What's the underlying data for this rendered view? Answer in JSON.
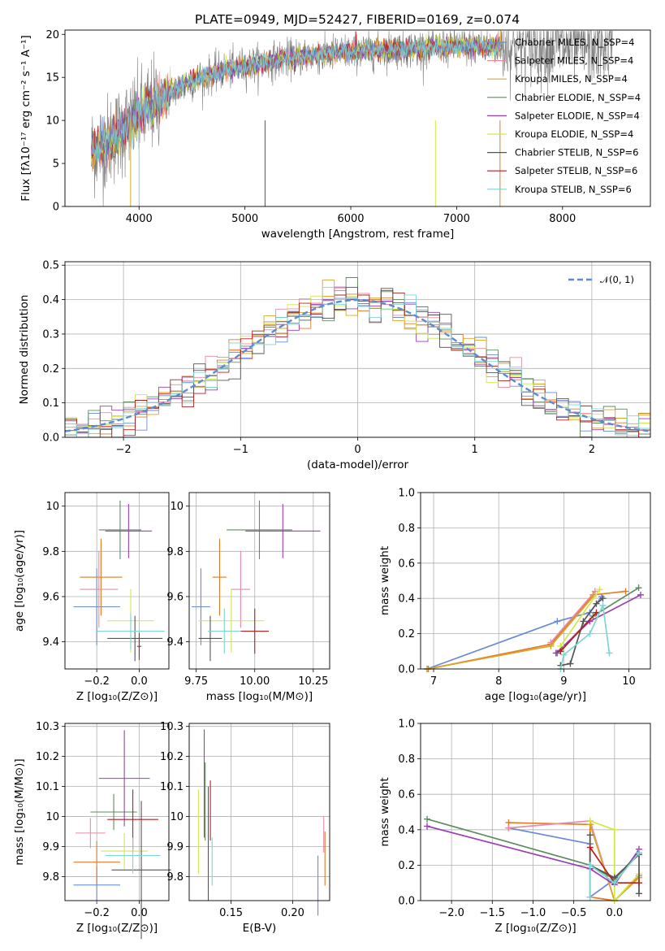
{
  "title": "PLATE=0949, MJD=52427, FIBERID=0169, z=0.074",
  "series_colors": [
    "#6a8ad8",
    "#e07b28",
    "#e88aa8",
    "#d9a52b",
    "#5e8c5e",
    "#9b3fb4",
    "#d2e64a",
    "#555555",
    "#b22020",
    "#7fd4d4"
  ],
  "chart_data": [
    {
      "id": "spectrum",
      "type": "line",
      "xlabel": "wavelength [Angstrom, rest frame]",
      "ylabel": "Flux [fλ10⁻¹⁷ erg cm⁻² s⁻¹ A⁻¹]",
      "xlim": [
        3300,
        8830
      ],
      "ylim": [
        0,
        20.5
      ],
      "xticks": [
        4000,
        5000,
        6000,
        7000,
        8000
      ],
      "yticks": [
        0,
        5,
        10,
        15,
        20
      ],
      "grid": false,
      "legend_position": "top-right",
      "legend": [
        {
          "name": "Chabrier MILES, N_SSP=4",
          "color": "#6a8ad8"
        },
        {
          "name": "Salpeter MILES, N_SSP=4",
          "color": "#e88aa8"
        },
        {
          "name": "Kroupa MILES, N_SSP=4",
          "color": "#d9a52b"
        },
        {
          "name": "Chabrier ELODIE, N_SSP=4",
          "color": "#5e8c5e"
        },
        {
          "name": "Salpeter ELODIE, N_SSP=4",
          "color": "#9b3fb4"
        },
        {
          "name": "Kroupa ELODIE, N_SSP=4",
          "color": "#d2e64a"
        },
        {
          "name": "Chabrier STELIB, N_SSP=6",
          "color": "#555555"
        },
        {
          "name": "Salpeter STELIB, N_SSP=6",
          "color": "#b22020"
        },
        {
          "name": "Kroupa STELIB, N_SSP=6",
          "color": "#7fd4d4"
        }
      ],
      "observed_color": "#808080",
      "continuum": {
        "x": [
          3550,
          3700,
          3800,
          3900,
          4000,
          4100,
          4200,
          4400,
          4600,
          4800,
          5000,
          5300,
          5600,
          6000,
          6400,
          6800,
          7200,
          7400
        ],
        "y": [
          6.5,
          7.5,
          8.5,
          9.5,
          10.5,
          11.5,
          12.5,
          14.0,
          15.0,
          15.8,
          16.3,
          17.0,
          17.5,
          18.0,
          18.3,
          18.5,
          18.6,
          18.6
        ]
      },
      "observed_xrange": [
        3550,
        8470
      ],
      "model_xrange": [
        3550,
        7420
      ]
    },
    {
      "id": "residuals",
      "type": "histogram",
      "xlabel": "(data-model)/error",
      "ylabel": "Normed distribution",
      "xlim": [
        -2.5,
        2.5
      ],
      "ylim": [
        0,
        0.51
      ],
      "xticks": [
        -2,
        -1,
        0,
        1,
        2
      ],
      "yticks": [
        0.0,
        0.1,
        0.2,
        0.3,
        0.4,
        0.5
      ],
      "grid": true,
      "bin_width": 0.1,
      "legend_position": "top-right",
      "legend": [
        {
          "name": "𝒩(0, 1)",
          "color": "#5b8bd0"
        }
      ],
      "reference_curve": {
        "name": "𝒩(0, 1)",
        "mean": 0,
        "sigma": 1,
        "style": "dashed"
      }
    },
    {
      "id": "age-vs-Z",
      "type": "errorbar",
      "xlabel": "Z [log₁₀(Z/Z⊙)]",
      "ylabel": "age  [log₁₀(age/yr)]",
      "xlim": [
        -0.35,
        0.14
      ],
      "ylim": [
        9.28,
        10.06
      ],
      "xticks": [
        -0.2,
        0.0
      ],
      "xtick_labels": [
        "−0.2",
        "0.0"
      ],
      "yticks": [
        9.4,
        9.6,
        9.8,
        10.0
      ],
      "grid": true,
      "points": [
        {
          "x": -0.2,
          "xerr": 0.11,
          "y": 9.555,
          "yerr": 0.17,
          "color": "#6a8ad8"
        },
        {
          "x": -0.18,
          "xerr": 0.1,
          "y": 9.686,
          "yerr": 0.17,
          "color": "#e07b28"
        },
        {
          "x": -0.19,
          "xerr": 0.09,
          "y": 9.632,
          "yerr": 0.17,
          "color": "#e88aa8"
        },
        {
          "x": -0.09,
          "xerr": 0.1,
          "y": 9.895,
          "yerr": 0.13,
          "color": "#5e8c5e"
        },
        {
          "x": -0.05,
          "xerr": 0.11,
          "y": 9.89,
          "yerr": 0.12,
          "color": "#9b3fb4"
        },
        {
          "x": -0.04,
          "xerr": 0.11,
          "y": 9.493,
          "yerr": 0.14,
          "color": "#d2e64a"
        },
        {
          "x": -0.02,
          "xerr": 0.13,
          "y": 9.415,
          "yerr": 0.1,
          "color": "#555555"
        },
        {
          "x": 0.0,
          "xerr": 0.01,
          "y": 9.38,
          "yerr": 0.06,
          "color": "#b22020"
        },
        {
          "x": -0.04,
          "xerr": 0.16,
          "y": 9.447,
          "yerr": 0.08,
          "color": "#7fd4d4"
        }
      ]
    },
    {
      "id": "age-vs-mass",
      "type": "errorbar",
      "xlabel": "mass [log₁₀(M/M⊙)]",
      "ylabel": "",
      "xlim": [
        9.72,
        10.32
      ],
      "ylim": [
        9.28,
        10.06
      ],
      "xticks": [
        9.75,
        10.0,
        10.25
      ],
      "xtick_labels": [
        "9.75",
        "10.00",
        "10.25"
      ],
      "yticks": [
        9.4,
        9.6,
        9.8,
        10.0
      ],
      "grid": true,
      "points": [
        {
          "x": 9.77,
          "xerr": 0.04,
          "y": 9.555,
          "yerr": 0.17,
          "color": "#6a8ad8"
        },
        {
          "x": 9.85,
          "xerr": 0.03,
          "y": 9.686,
          "yerr": 0.17,
          "color": "#e07b28"
        },
        {
          "x": 9.94,
          "xerr": 0.04,
          "y": 9.632,
          "yerr": 0.17,
          "color": "#e88aa8"
        },
        {
          "x": 10.02,
          "xerr": 0.14,
          "y": 9.895,
          "yerr": 0.13,
          "color": "#5e8c5e"
        },
        {
          "x": 10.12,
          "xerr": 0.16,
          "y": 9.89,
          "yerr": 0.12,
          "color": "#9b3fb4"
        },
        {
          "x": 9.9,
          "xerr": 0.14,
          "y": 9.493,
          "yerr": 0.14,
          "color": "#d2e64a"
        },
        {
          "x": 9.81,
          "xerr": 0.05,
          "y": 9.415,
          "yerr": 0.1,
          "color": "#555555"
        },
        {
          "x": 10.0,
          "xerr": 0.06,
          "y": 9.447,
          "yerr": 0.1,
          "color": "#b22020"
        },
        {
          "x": 9.87,
          "xerr": 0.07,
          "y": 9.447,
          "yerr": 0.1,
          "color": "#7fd4d4"
        }
      ]
    },
    {
      "id": "weight-vs-age",
      "type": "line",
      "xlabel": "age  [log₁₀(age/yr)]",
      "ylabel": "mass weight",
      "xlim": [
        6.8,
        10.33
      ],
      "ylim": [
        0,
        1.0
      ],
      "xticks": [
        7,
        8,
        9,
        10
      ],
      "yticks": [
        0.0,
        0.2,
        0.4,
        0.6,
        0.8,
        1.0
      ],
      "grid": true,
      "series": [
        {
          "color": "#6a8ad8",
          "x": [
            6.9,
            8.9,
            9.4,
            9.58
          ],
          "y": [
            0.0,
            0.27,
            0.32,
            0.41
          ]
        },
        {
          "color": "#e07b28",
          "x": [
            6.92,
            8.8,
            9.45,
            9.95
          ],
          "y": [
            0.0,
            0.14,
            0.42,
            0.44
          ]
        },
        {
          "color": "#e88aa8",
          "x": [
            8.8,
            9.48
          ],
          "y": [
            0.15,
            0.44
          ]
        },
        {
          "color": "#d9a52b",
          "x": [
            6.9,
            8.8,
            9.45
          ],
          "y": [
            0.0,
            0.13,
            0.41
          ]
        },
        {
          "color": "#5e8c5e",
          "x": [
            8.9,
            9.45,
            10.15
          ],
          "y": [
            0.09,
            0.3,
            0.46
          ]
        },
        {
          "color": "#9b3fb4",
          "x": [
            8.88,
            9.4,
            10.18
          ],
          "y": [
            0.09,
            0.27,
            0.42
          ]
        },
        {
          "color": "#d2e64a",
          "x": [
            8.95,
            9.55
          ],
          "y": [
            0.13,
            0.45
          ]
        },
        {
          "color": "#555555",
          "x": [
            8.95,
            9.1,
            9.3,
            9.5,
            9.6
          ],
          "y": [
            0.02,
            0.03,
            0.27,
            0.37,
            0.4
          ]
        },
        {
          "color": "#b22020",
          "x": [
            8.95,
            9.5
          ],
          "y": [
            0.1,
            0.32
          ]
        },
        {
          "color": "#7fd4d4",
          "x": [
            8.95,
            9.0,
            9.4,
            9.6,
            9.7
          ],
          "y": [
            0.0,
            0.08,
            0.2,
            0.36,
            0.09
          ]
        }
      ]
    },
    {
      "id": "mass-vs-Z",
      "type": "errorbar",
      "xlabel": "Z [log₁₀(Z/Z⊙)]",
      "ylabel": "mass [log₁₀(M/M⊙)]",
      "xlim": [
        -0.35,
        0.14
      ],
      "ylim": [
        9.72,
        10.31
      ],
      "xticks": [
        -0.2,
        0.0
      ],
      "xtick_labels": [
        "−0.2",
        "0.0"
      ],
      "yticks": [
        9.8,
        9.9,
        10.0,
        10.1,
        10.2,
        10.3
      ],
      "grid": true,
      "points": [
        {
          "x": -0.2,
          "xerr": 0.11,
          "y": 9.772,
          "yerr": 0.06,
          "color": "#6a8ad8"
        },
        {
          "x": -0.2,
          "xerr": 0.11,
          "y": 9.848,
          "yerr": 0.07,
          "color": "#e07b28"
        },
        {
          "x": -0.23,
          "xerr": 0.07,
          "y": 9.945,
          "yerr": 0.05,
          "color": "#e88aa8"
        },
        {
          "x": -0.12,
          "xerr": 0.11,
          "y": 10.015,
          "yerr": 0.06,
          "color": "#5e8c5e"
        },
        {
          "x": -0.07,
          "xerr": 0.12,
          "y": 10.127,
          "yerr": 0.16,
          "color": "#9b3fb4"
        },
        {
          "x": -0.07,
          "xerr": 0.11,
          "y": 9.885,
          "yerr": 0.06,
          "color": "#d2e64a"
        },
        {
          "x": 0.01,
          "xerr": 0.14,
          "y": 9.822,
          "yerr": 0.23,
          "color": "#555555"
        },
        {
          "x": -0.03,
          "xerr": 0.12,
          "y": 9.99,
          "yerr": 0.1,
          "color": "#b22020"
        },
        {
          "x": -0.03,
          "xerr": 0.13,
          "y": 9.87,
          "yerr": 0.06,
          "color": "#7fd4d4"
        }
      ]
    },
    {
      "id": "mass-vs-EBV",
      "type": "errorbar",
      "xlabel": "E(B-V)",
      "ylabel": "",
      "xlim": [
        0.116,
        0.23
      ],
      "ylim": [
        9.72,
        10.31
      ],
      "xticks": [
        0.15,
        0.2
      ],
      "xtick_labels": [
        "0.15",
        "0.20"
      ],
      "yticks": [
        9.8,
        9.9,
        10.0,
        10.1,
        10.2,
        10.3
      ],
      "grid": true,
      "points": [
        {
          "x": 0.2205,
          "xerr": 0.0,
          "y": 9.77,
          "yerr": 0.1,
          "color": "#6a8ad8"
        },
        {
          "x": 0.2262,
          "xerr": 0.0,
          "y": 9.86,
          "yerr": 0.09,
          "color": "#e07b28"
        },
        {
          "x": 0.2252,
          "xerr": 0.0,
          "y": 9.94,
          "yerr": 0.06,
          "color": "#e88aa8"
        },
        {
          "x": 0.129,
          "xerr": 0.0,
          "y": 10.05,
          "yerr": 0.13,
          "color": "#5e8c5e"
        },
        {
          "x": 0.1282,
          "xerr": 0.0,
          "y": 10.11,
          "yerr": 0.18,
          "color": "#9b3fb4"
        },
        {
          "x": 0.1235,
          "xerr": 0.0,
          "y": 9.95,
          "yerr": 0.14,
          "color": "#d2e64a"
        },
        {
          "x": 0.1315,
          "xerr": 0.0,
          "y": 9.91,
          "yerr": 0.19,
          "color": "#555555"
        },
        {
          "x": 0.1332,
          "xerr": 0.0,
          "y": 10.02,
          "yerr": 0.1,
          "color": "#b22020"
        },
        {
          "x": 0.1346,
          "xerr": 0.0,
          "y": 9.85,
          "yerr": 0.08,
          "color": "#7fd4d4"
        }
      ]
    },
    {
      "id": "weight-vs-Z",
      "type": "line",
      "xlabel": "Z [log₁₀(Z/Z⊙)]",
      "ylabel": "mass weight",
      "xlim": [
        -2.38,
        0.44
      ],
      "ylim": [
        0,
        1.0
      ],
      "xticks": [
        -2.0,
        -1.5,
        -1.0,
        -0.5,
        0.0
      ],
      "xtick_labels": [
        "−2.0",
        "−1.5",
        "−1.0",
        "−0.5",
        "0.0"
      ],
      "yticks": [
        0.0,
        0.2,
        0.4,
        0.6,
        0.8,
        1.0
      ],
      "grid": true,
      "series": [
        {
          "color": "#6a8ad8",
          "x": [
            -1.3,
            -0.3,
            -0.3,
            0.0,
            0.3
          ],
          "y": [
            0.41,
            0.32,
            0.02,
            0.12,
            0.27
          ]
        },
        {
          "color": "#e07b28",
          "x": [
            -1.3,
            -0.3,
            -0.3,
            0.0,
            0.3
          ],
          "y": [
            0.44,
            0.43,
            0.02,
            0.0,
            0.14
          ]
        },
        {
          "color": "#e88aa8",
          "x": [
            -1.3,
            -0.3,
            0.0,
            0.3
          ],
          "y": [
            0.41,
            0.45,
            0.0,
            0.13
          ]
        },
        {
          "color": "#d9a52b",
          "x": [
            -0.3,
            0.0,
            0.3
          ],
          "y": [
            0.43,
            0.0,
            0.13
          ]
        },
        {
          "color": "#5e8c5e",
          "x": [
            -2.3,
            -0.3,
            0.0,
            0.3
          ],
          "y": [
            0.46,
            0.2,
            0.12,
            0.27
          ]
        },
        {
          "color": "#9b3fb4",
          "x": [
            -2.3,
            -0.3,
            0.0,
            0.3
          ],
          "y": [
            0.42,
            0.18,
            0.09,
            0.29
          ]
        },
        {
          "color": "#d2e64a",
          "x": [
            -0.3,
            0.0,
            0.0,
            0.3
          ],
          "y": [
            0.45,
            0.4,
            0.0,
            0.15
          ]
        },
        {
          "color": "#555555",
          "x": [
            -0.3,
            -0.3,
            0.0,
            0.3,
            0.3
          ],
          "y": [
            0.37,
            0.2,
            0.13,
            0.26,
            0.04
          ]
        },
        {
          "color": "#b22020",
          "x": [
            -0.3,
            0.0,
            0.3
          ],
          "y": [
            0.3,
            0.1,
            0.1
          ]
        },
        {
          "color": "#7fd4d4",
          "x": [
            -0.3,
            -0.3,
            0.0,
            0.3
          ],
          "y": [
            0.02,
            0.2,
            0.1,
            0.27
          ]
        }
      ]
    }
  ]
}
